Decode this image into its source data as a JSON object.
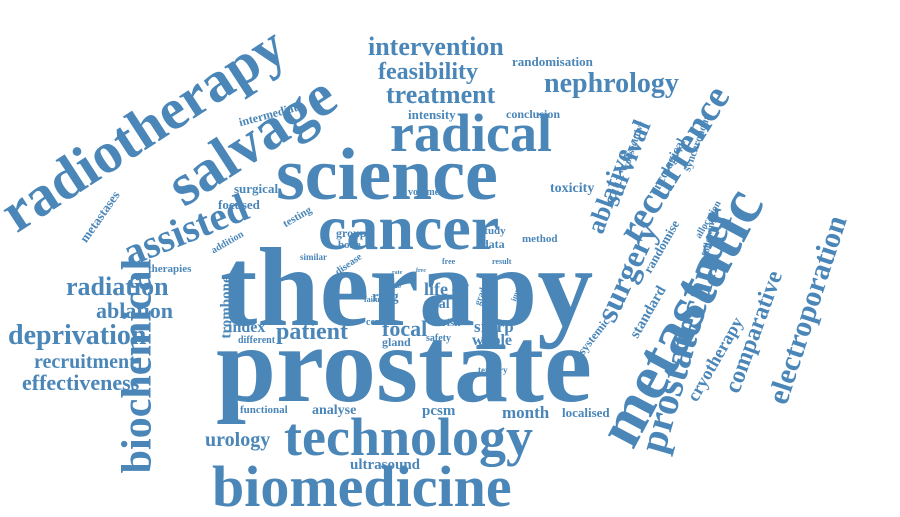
{
  "word_cloud": {
    "color": "#4a86b8",
    "words": [
      {
        "text": "prostate",
        "emphasis": 1.0
      },
      {
        "text": "therapy",
        "emphasis": 1.0
      },
      {
        "text": "science",
        "emphasis": 0.7
      },
      {
        "text": "cancer",
        "emphasis": 0.6
      },
      {
        "text": "biomedicine",
        "emphasis": 0.6
      },
      {
        "text": "technology",
        "emphasis": 0.6
      },
      {
        "text": "radiotherapy",
        "emphasis": 0.7
      },
      {
        "text": "metastatic",
        "emphasis": 0.7
      },
      {
        "text": "radical",
        "emphasis": 0.55
      },
      {
        "text": "salvage",
        "emphasis": 0.6
      },
      {
        "text": "biochemical",
        "emphasis": 0.5
      },
      {
        "text": "prostatecancer",
        "emphasis": 0.45
      },
      {
        "text": "recurrence",
        "emphasis": 0.4
      },
      {
        "text": "assisted",
        "emphasis": 0.45
      },
      {
        "text": "surgery",
        "emphasis": 0.35
      },
      {
        "text": "survival",
        "emphasis": 0.3
      },
      {
        "text": "ablative",
        "emphasis": 0.3
      },
      {
        "text": "electroporation",
        "emphasis": 0.3
      },
      {
        "text": "comparative",
        "emphasis": 0.25
      },
      {
        "text": "nephrology",
        "emphasis": 0.3
      },
      {
        "text": "treatment",
        "emphasis": 0.3
      },
      {
        "text": "intervention",
        "emphasis": 0.3
      },
      {
        "text": "feasibility",
        "emphasis": 0.28
      },
      {
        "text": "deprivation",
        "emphasis": 0.3
      },
      {
        "text": "radiation",
        "emphasis": 0.28
      },
      {
        "text": "effectiveness",
        "emphasis": 0.26
      },
      {
        "text": "recruitment",
        "emphasis": 0.24
      },
      {
        "text": "ablation",
        "emphasis": 0.24
      },
      {
        "text": "patient",
        "emphasis": 0.28
      },
      {
        "text": "focal",
        "emphasis": 0.25
      },
      {
        "text": "urology",
        "emphasis": 0.24
      },
      {
        "text": "cryotherapy",
        "emphasis": 0.2
      },
      {
        "text": "randomisation",
        "emphasis": 0.18
      },
      {
        "text": "intermediate",
        "emphasis": 0.16
      },
      {
        "text": "intensity",
        "emphasis": 0.16
      },
      {
        "text": "conclusion",
        "emphasis": 0.15
      },
      {
        "text": "consecutive",
        "emphasis": 0.13
      },
      {
        "text": "synchronous",
        "emphasis": 0.13
      },
      {
        "text": "oncological",
        "emphasis": 0.14
      },
      {
        "text": "toxicity",
        "emphasis": 0.16
      },
      {
        "text": "randomise",
        "emphasis": 0.15
      },
      {
        "text": "allocation",
        "emphasis": 0.12
      },
      {
        "text": "following",
        "emphasis": 0.12
      },
      {
        "text": "standard",
        "emphasis": 0.16
      },
      {
        "text": "systemic",
        "emphasis": 0.14
      },
      {
        "text": "metastases",
        "emphasis": 0.14
      },
      {
        "text": "surgical",
        "emphasis": 0.15
      },
      {
        "text": "focused",
        "emphasis": 0.15
      },
      {
        "text": "testing",
        "emphasis": 0.13
      },
      {
        "text": "volume",
        "emphasis": 0.11
      },
      {
        "text": "addition",
        "emphasis": 0.11
      },
      {
        "text": "group",
        "emphasis": 0.13
      },
      {
        "text": "bone",
        "emphasis": 0.12
      },
      {
        "text": "study",
        "emphasis": 0.12
      },
      {
        "text": "data",
        "emphasis": 0.13
      },
      {
        "text": "method",
        "emphasis": 0.12
      },
      {
        "text": "similar",
        "emphasis": 0.11
      },
      {
        "text": "disease",
        "emphasis": 0.11
      },
      {
        "text": "therapies",
        "emphasis": 0.12
      },
      {
        "text": "free",
        "emphasis": 0.1
      },
      {
        "text": "result",
        "emphasis": 0.1
      },
      {
        "text": "life",
        "emphasis": 0.18
      },
      {
        "text": "year",
        "emphasis": 0.11
      },
      {
        "text": "rtog",
        "emphasis": 0.16
      },
      {
        "text": "grade",
        "emphasis": 0.1
      },
      {
        "text": "impact",
        "emphasis": 0.1
      },
      {
        "text": "trial",
        "emphasis": 0.15
      },
      {
        "text": "failure",
        "emphasis": 0.1
      },
      {
        "text": "risk",
        "emphasis": 0.12
      },
      {
        "text": "trombone",
        "emphasis": 0.16
      },
      {
        "text": "index",
        "emphasis": 0.2
      },
      {
        "text": "different",
        "emphasis": 0.13
      },
      {
        "text": "centre",
        "emphasis": 0.12
      },
      {
        "text": "gland",
        "emphasis": 0.14
      },
      {
        "text": "safety",
        "emphasis": 0.12
      },
      {
        "text": "srarp",
        "emphasis": 0.2
      },
      {
        "text": "whole",
        "emphasis": 0.18
      },
      {
        "text": "tertiary",
        "emphasis": 0.11
      },
      {
        "text": "functional",
        "emphasis": 0.13
      },
      {
        "text": "analyse",
        "emphasis": 0.16
      },
      {
        "text": "pcsm",
        "emphasis": 0.17
      },
      {
        "text": "month",
        "emphasis": 0.2
      },
      {
        "text": "localised",
        "emphasis": 0.16
      },
      {
        "text": "ultrasound",
        "emphasis": 0.17
      },
      {
        "text": "sub",
        "emphasis": 0.08
      },
      {
        "text": "free",
        "emphasis": 0.08
      },
      {
        "text": "rate",
        "emphasis": 0.08
      }
    ]
  }
}
